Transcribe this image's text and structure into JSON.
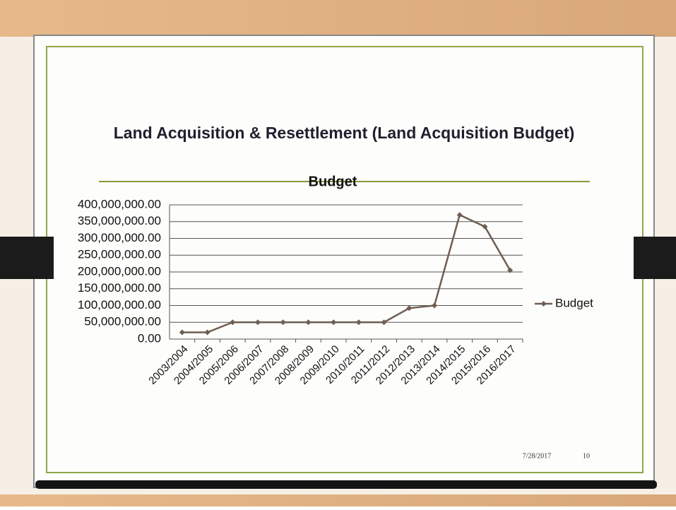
{
  "slide": {
    "title": "Land Acquisition & Resettlement (Land Acquisition Budget)",
    "date": "7/28/2017",
    "page": "10"
  },
  "chart_data": {
    "type": "line",
    "title": "Budget",
    "categories": [
      "2003/2004",
      "2004/2005",
      "2005/2006",
      "2006/2007",
      "2007/2008",
      "2008/2009",
      "2009/2010",
      "2010/2011",
      "2011/2012",
      "2012/2013",
      "2013/2014",
      "2014/2015",
      "2015/2016",
      "2016/2017"
    ],
    "series": [
      {
        "name": "Budget",
        "color": "#6e5e52",
        "values": [
          20000000,
          20000000,
          50000000,
          50000000,
          50000000,
          50000000,
          50000000,
          50000000,
          50000000,
          92000000,
          100000000,
          370000000,
          335000000,
          205000000
        ]
      }
    ],
    "ylim": [
      0,
      400000000
    ],
    "yticks": [
      {
        "value": 0,
        "label": "0.00"
      },
      {
        "value": 50000000,
        "label": "50,000,000.00"
      },
      {
        "value": 100000000,
        "label": "100,000,000.00"
      },
      {
        "value": 150000000,
        "label": "150,000,000.00"
      },
      {
        "value": 200000000,
        "label": "200,000,000.00"
      },
      {
        "value": 250000000,
        "label": "250,000,000.00"
      },
      {
        "value": 300000000,
        "label": "300,000,000.00"
      },
      {
        "value": 350000000,
        "label": "350,000,000.00"
      },
      {
        "value": 400000000,
        "label": "400,000,000.00"
      }
    ],
    "grid": true,
    "legend": "right"
  }
}
